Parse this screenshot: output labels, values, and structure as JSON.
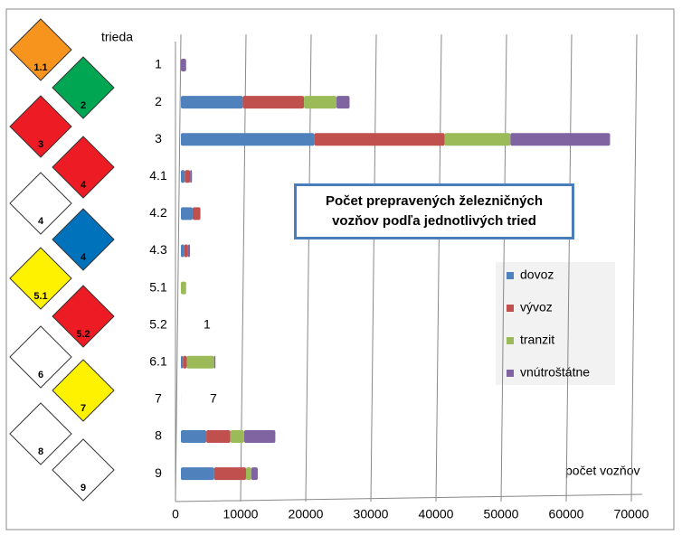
{
  "chart_data": {
    "type": "bar",
    "orientation": "horizontal",
    "stacked": true,
    "title": "Počet prepravených železničných vozňov podľa jednotlivých tried",
    "y_label": "trieda",
    "x_label": "počet vozňov",
    "categories": [
      "1",
      "2",
      "3",
      "4.1",
      "4.2",
      "4.3",
      "5.1",
      "5.2",
      "6.1",
      "7",
      "8",
      "9"
    ],
    "series": [
      {
        "name": "dovoz",
        "color": "#4f81bd",
        "values": [
          0,
          9500,
          20500,
          600,
          1800,
          500,
          0,
          1,
          300,
          0,
          3900,
          5100
        ]
      },
      {
        "name": "vývoz",
        "color": "#c0504d",
        "values": [
          0,
          9400,
          20000,
          800,
          1200,
          600,
          0,
          0,
          600,
          0,
          3700,
          4900
        ]
      },
      {
        "name": "tranzit",
        "color": "#9bbb59",
        "values": [
          0,
          5000,
          10100,
          0,
          0,
          0,
          800,
          0,
          4200,
          0,
          2100,
          800
        ]
      },
      {
        "name": "vnútroštátne",
        "color": "#8064a2",
        "values": [
          800,
          2000,
          15300,
          300,
          0,
          300,
          0,
          0,
          200,
          7,
          4800,
          1000
        ]
      }
    ],
    "annotations": [
      {
        "category": "5.2",
        "text": "1"
      },
      {
        "category": "7",
        "text": "7"
      }
    ],
    "xlim": [
      0,
      70000
    ],
    "xticks": [
      0,
      10000,
      20000,
      30000,
      40000,
      50000,
      60000,
      70000
    ],
    "grid": true,
    "legend": "right",
    "hazard_signs": [
      {
        "label": "1.1",
        "color": "#f7941d"
      },
      {
        "label": "2",
        "color": "#00a651"
      },
      {
        "label": "3",
        "color": "#ed1c24"
      },
      {
        "label": "4",
        "color": "#ed1c24"
      },
      {
        "label": "4",
        "color": "#ffffff"
      },
      {
        "label": "4",
        "color": "#0072bc"
      },
      {
        "label": "5.1",
        "color": "#fff200"
      },
      {
        "label": "5.2",
        "color": "#ed1c24"
      },
      {
        "label": "6",
        "color": "#ffffff"
      },
      {
        "label": "7",
        "color": "#fff200"
      },
      {
        "label": "8",
        "color": "#ffffff"
      },
      {
        "label": "9",
        "color": "#ffffff"
      }
    ]
  }
}
